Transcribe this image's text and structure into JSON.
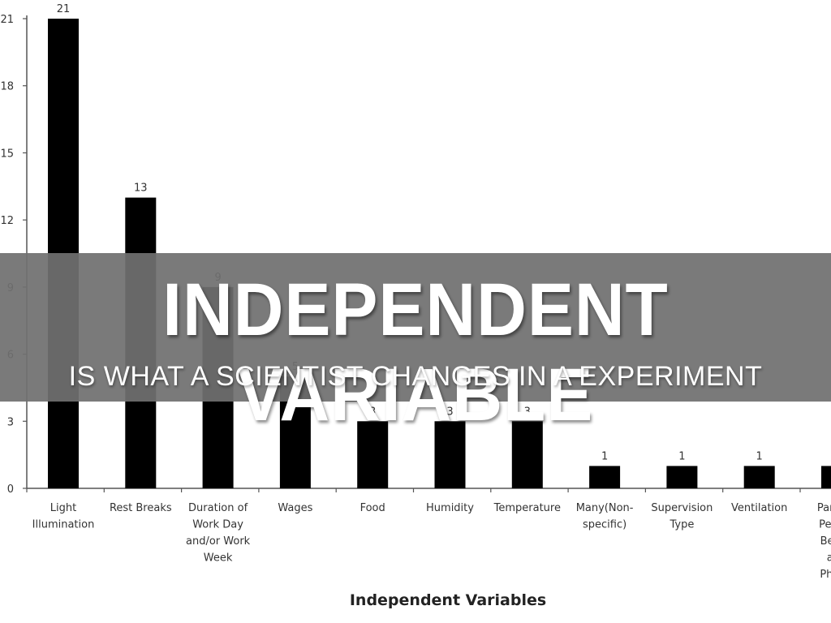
{
  "chart_data": {
    "type": "bar",
    "categories": [
      [
        "Light",
        "Illumination"
      ],
      [
        "Rest Breaks"
      ],
      [
        "Duration of",
        "Work Day",
        "and/or Work",
        "Week"
      ],
      [
        "Wages"
      ],
      [
        "Food"
      ],
      [
        "Humidity"
      ],
      [
        "Temperature"
      ],
      [
        "Many(Non-",
        "specific)"
      ],
      [
        "Supervision",
        "Type"
      ],
      [
        "Ventilation"
      ],
      [
        "Particip",
        "Person",
        "Behav",
        "and",
        "Physic"
      ]
    ],
    "values": [
      21,
      13,
      9,
      5,
      3,
      3,
      3,
      1,
      1,
      1,
      1
    ],
    "data_labels": [
      "21",
      "13",
      "9",
      "5",
      "3",
      "3",
      "3",
      "1",
      "1",
      "1",
      ""
    ],
    "ylim": [
      0,
      21
    ],
    "yticks": [
      0,
      3,
      6,
      9,
      12,
      15,
      18,
      21
    ],
    "xlabel": "Independent Variables",
    "bar_color": "#000000",
    "grid": false
  },
  "banner": {
    "title": "INDEPENDENT VARIABLE",
    "subtitle": "IS WHAT A SCIENTIST CHANGES IN A EXPERIMENT"
  }
}
